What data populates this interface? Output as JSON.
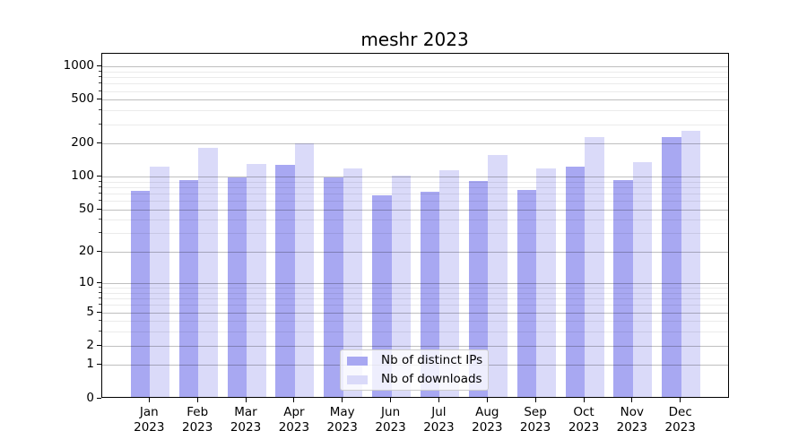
{
  "chart_data": {
    "type": "bar",
    "title": "meshr 2023",
    "categories": [
      "Jan",
      "Feb",
      "Mar",
      "Apr",
      "May",
      "Jun",
      "Jul",
      "Aug",
      "Sep",
      "Oct",
      "Nov",
      "Dec"
    ],
    "category_year": "2023",
    "series": [
      {
        "name": "Nb of distinct IPs",
        "color": "#a8a8f2",
        "values": [
          72,
          91,
          96,
          125,
          96,
          65,
          71,
          89,
          73,
          121,
          90,
          222
        ]
      },
      {
        "name": "Nb of downloads",
        "color": "#dadaf9",
        "values": [
          120,
          178,
          128,
          194,
          115,
          100,
          112,
          153,
          116,
          224,
          131,
          254
        ]
      }
    ],
    "xlabel": "",
    "ylabel": "",
    "yscale": "log1p",
    "ylim": [
      0,
      1315
    ],
    "y_ticks": [
      0,
      1,
      2,
      5,
      10,
      20,
      50,
      100,
      200,
      500,
      1000
    ],
    "y_minor_ticks": [
      3,
      4,
      6,
      7,
      8,
      9,
      30,
      40,
      60,
      70,
      80,
      90,
      300,
      400,
      600,
      700,
      800,
      900
    ],
    "grid": "both",
    "legend_position": "lower center",
    "colors": {
      "bar_distinct_ips": "#a8a8f2",
      "bar_downloads": "#dadaf9",
      "grid_major": "rgba(0,0,0,0.25)",
      "grid_minor": "rgba(0,0,0,0.08)",
      "axis": "#000000",
      "legend_border": "#cccccc",
      "background": "#ffffff"
    }
  }
}
